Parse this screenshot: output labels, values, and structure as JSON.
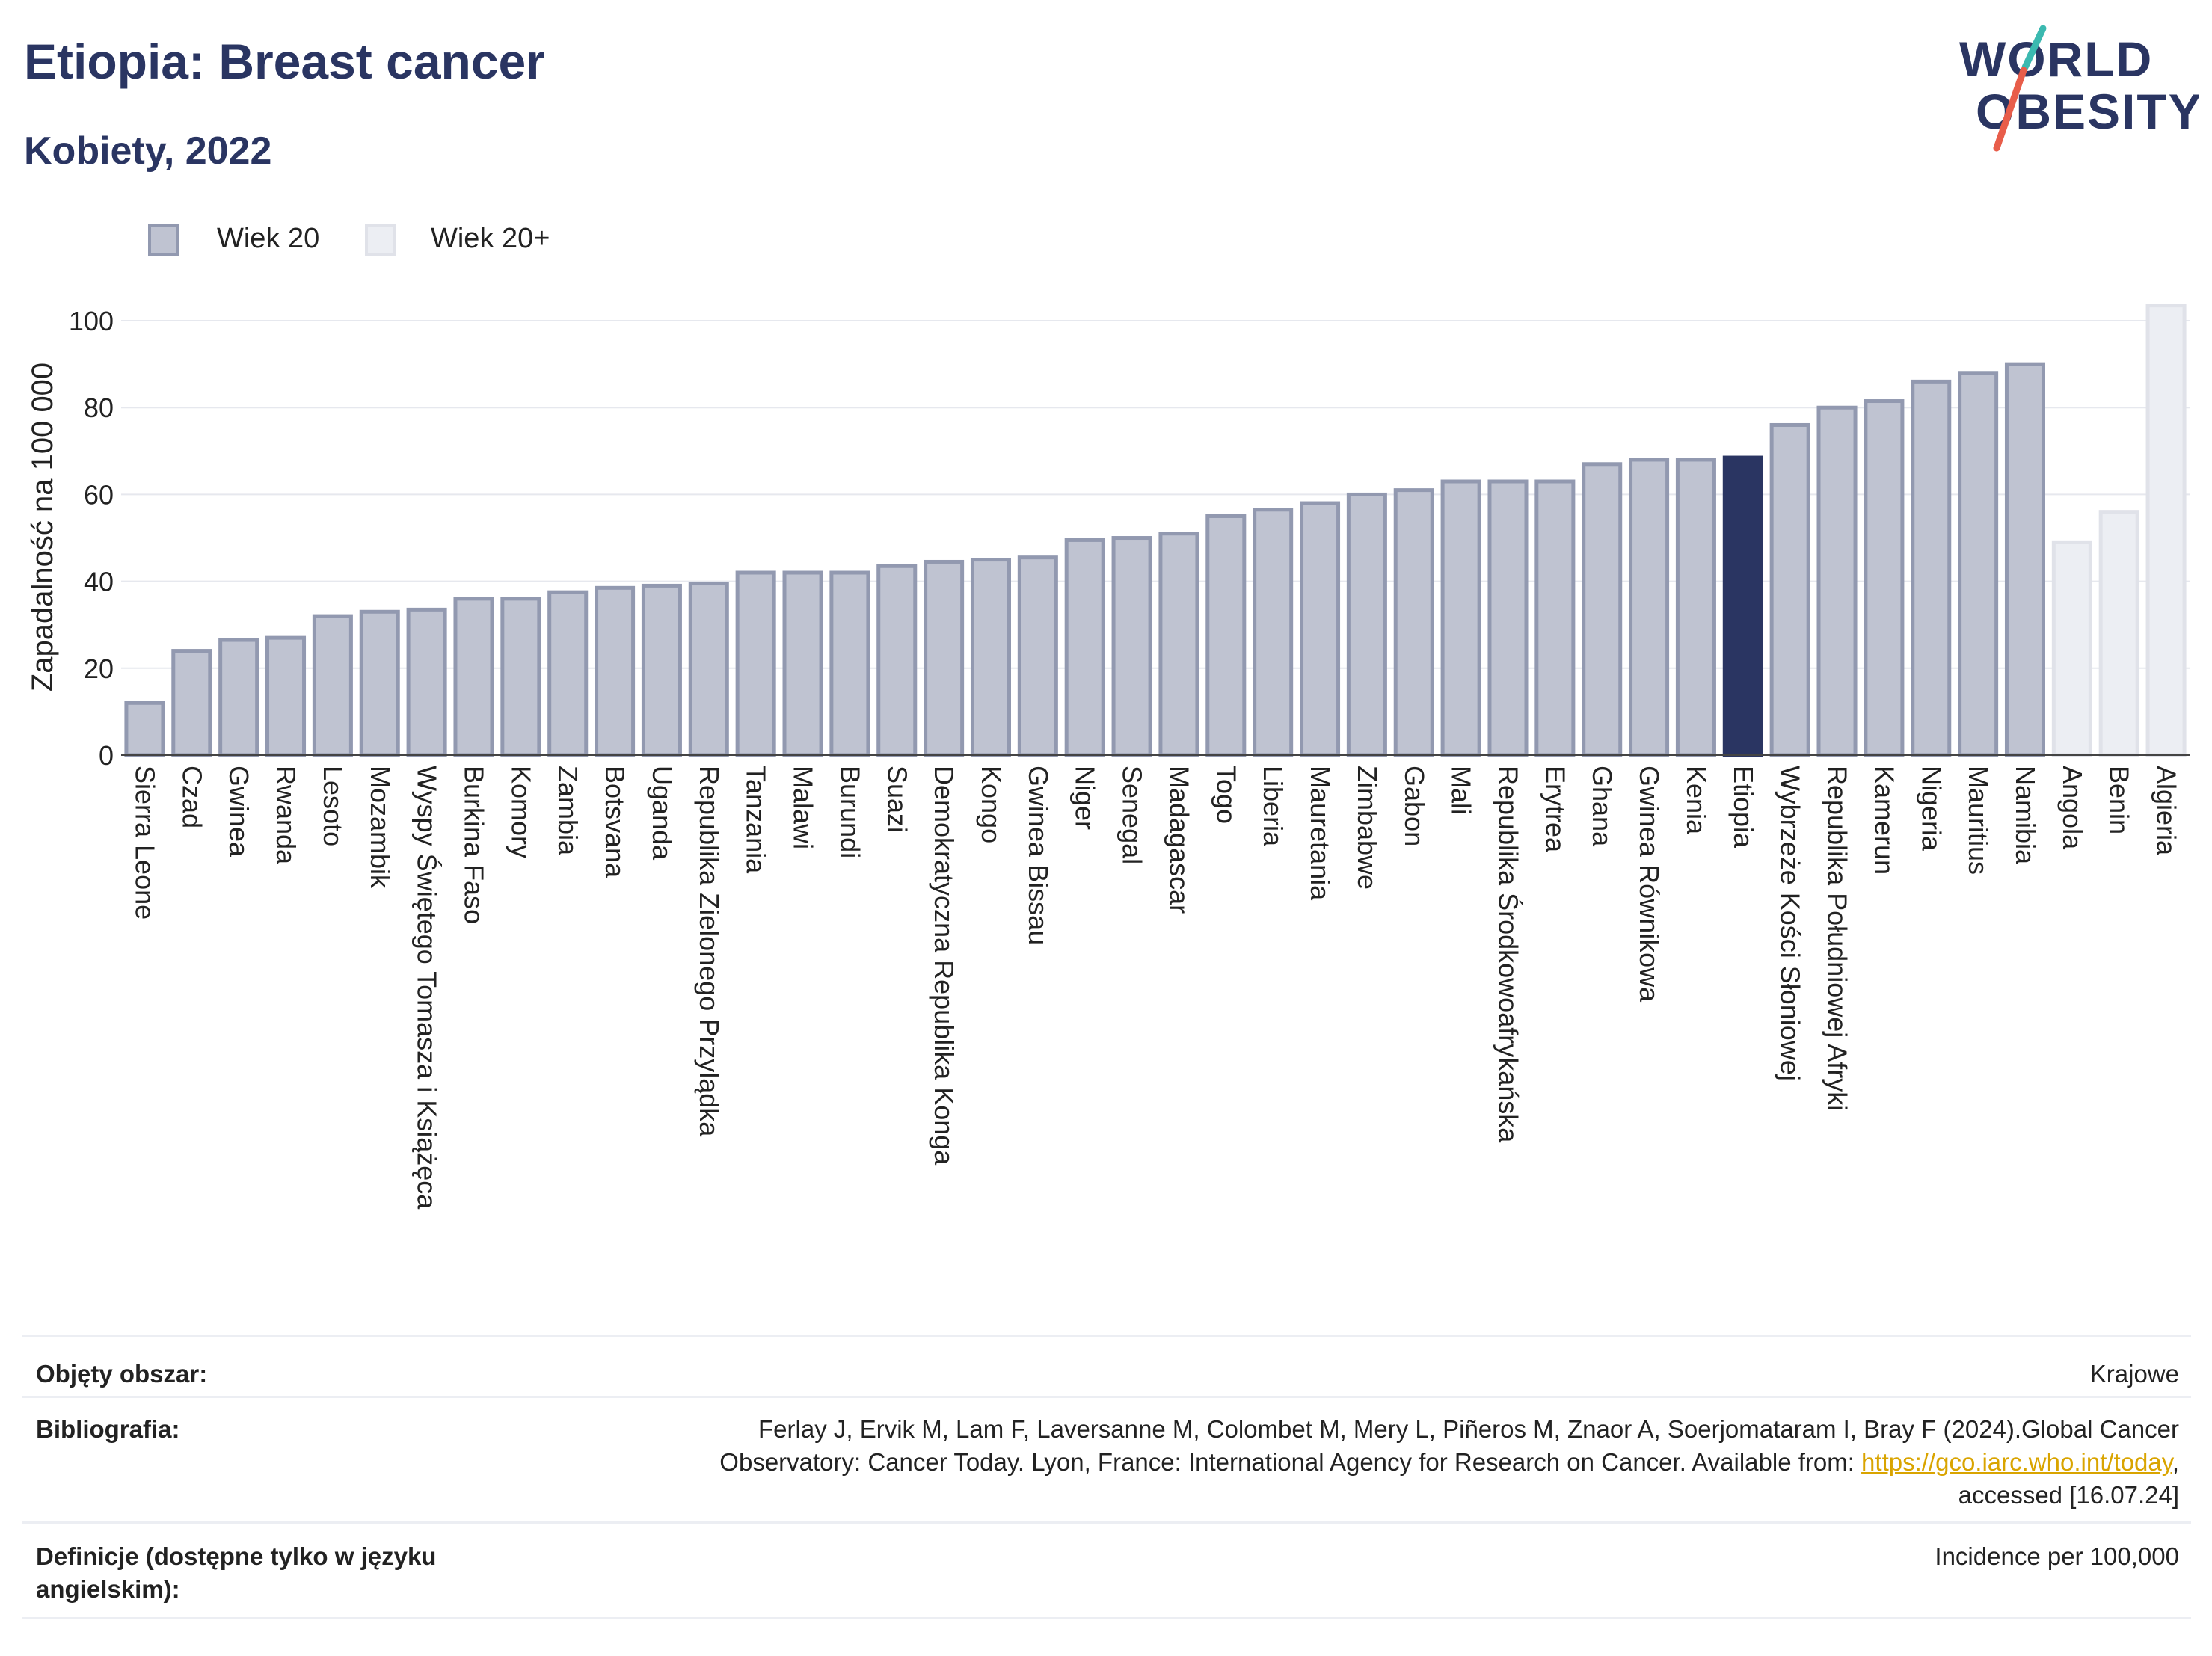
{
  "header": {
    "title": "Etiopia: Breast cancer",
    "subtitle": "Kobiety, 2022"
  },
  "logo": {
    "line1": "WORLD",
    "line2": "OBESITY",
    "accent_color": "#e85d4a",
    "accent_color2": "#3bb9b0"
  },
  "legend": {
    "items": [
      {
        "label": "Wiek 20",
        "color": "#bfc3d1",
        "border": "#9299b0"
      },
      {
        "label": "Wiek 20+",
        "color": "#eceef3",
        "border": "#e0e2e9"
      }
    ]
  },
  "chart_data": {
    "type": "bar",
    "ylabel": "Zapadalność na 100 000",
    "ylim": [
      0,
      105
    ],
    "yticks": [
      0,
      20,
      40,
      60,
      80,
      100
    ],
    "grid": true,
    "highlight_color": "#2a3562",
    "categories": [
      "Sierra Leone",
      "Czad",
      "Gwinea",
      "Rwanda",
      "Lesoto",
      "Mozambik",
      "Wyspy Świętego Tomasza i Książęca",
      "Burkina Faso",
      "Komory",
      "Zambia",
      "Botsvana",
      "Uganda",
      "Republika Zielonego Przylądka",
      "Tanzania",
      "Malawi",
      "Burundi",
      "Suazi",
      "Demokratyczna Republika Konga",
      "Kongo",
      "Gwinea Bissau",
      "Niger",
      "Senegal",
      "Madagascar",
      "Togo",
      "Liberia",
      "Mauretania",
      "Zimbabwe",
      "Gabon",
      "Mali",
      "Republika Środkowoafrykańska",
      "Erytrea",
      "Ghana",
      "Gwinea Równikowa",
      "Kenia",
      "Etiopia",
      "Wybrzeże Kości Słoniowej",
      "Republika Południowej Afryki",
      "Kamerun",
      "Nigeria",
      "Mauritius",
      "Namibia",
      "Angola",
      "Benin",
      "Algieria"
    ],
    "values": [
      12,
      24,
      26.5,
      27,
      32,
      33,
      33.5,
      36,
      36,
      37.5,
      38.5,
      39,
      39.5,
      42,
      42,
      42,
      43.5,
      44.5,
      45,
      45.5,
      49.5,
      50,
      51,
      55,
      56.5,
      58,
      60,
      61,
      63,
      63,
      63,
      67,
      68,
      68,
      68.5,
      76,
      80,
      81.5,
      86,
      88,
      90,
      49,
      56,
      103.5
    ],
    "groups": [
      "Wiek 20",
      "Wiek 20",
      "Wiek 20",
      "Wiek 20",
      "Wiek 20",
      "Wiek 20",
      "Wiek 20",
      "Wiek 20",
      "Wiek 20",
      "Wiek 20",
      "Wiek 20",
      "Wiek 20",
      "Wiek 20",
      "Wiek 20",
      "Wiek 20",
      "Wiek 20",
      "Wiek 20",
      "Wiek 20",
      "Wiek 20",
      "Wiek 20",
      "Wiek 20",
      "Wiek 20",
      "Wiek 20",
      "Wiek 20",
      "Wiek 20",
      "Wiek 20",
      "Wiek 20",
      "Wiek 20",
      "Wiek 20",
      "Wiek 20",
      "Wiek 20",
      "Wiek 20",
      "Wiek 20",
      "Wiek 20",
      "Wiek 20",
      "Wiek 20",
      "Wiek 20",
      "Wiek 20",
      "Wiek 20",
      "Wiek 20",
      "Wiek 20",
      "Wiek 20+",
      "Wiek 20+",
      "Wiek 20+"
    ],
    "highlight": "Etiopia"
  },
  "metadata": {
    "rows": [
      {
        "key": "Objęty obszar:",
        "value": "Krajowe"
      },
      {
        "key": "Bibliografia:",
        "value_lines": [
          "Ferlay J, Ervik M, Lam F, Laversanne M, Colombet M, Mery L, Piñeros M, Znaor A, Soerjomataram I, Bray F (2024).Global Cancer",
          "Observatory: Cancer Today. Lyon, France: International Agency for Research on Cancer. Available from: "
        ],
        "link": "https://gco.iarc.who.int/today",
        "after_link": ",",
        "last_line": "accessed [16.07.24]"
      },
      {
        "key": "Definicje (dostępne tylko w języku angielskim):",
        "value": "Incidence per 100,000"
      }
    ]
  }
}
